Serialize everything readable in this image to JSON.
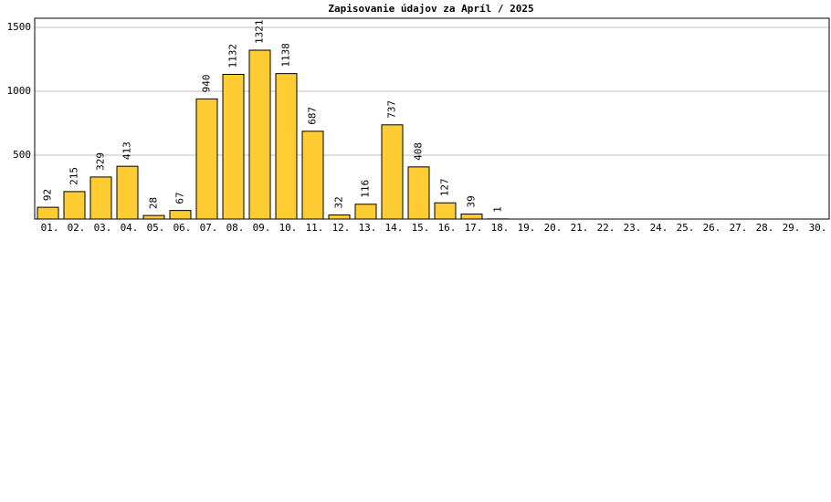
{
  "chart_data": {
    "type": "bar",
    "title": "Zapisovanie údajov za Apríl / 2025",
    "categories": [
      "01.",
      "02.",
      "03.",
      "04.",
      "05.",
      "06.",
      "07.",
      "08.",
      "09.",
      "10.",
      "11.",
      "12.",
      "13.",
      "14.",
      "15.",
      "16.",
      "17.",
      "18.",
      "19.",
      "20.",
      "21.",
      "22.",
      "23.",
      "24.",
      "25.",
      "26.",
      "27.",
      "28.",
      "29.",
      "30."
    ],
    "values": [
      92,
      215,
      329,
      413,
      28,
      67,
      940,
      1132,
      1321,
      1138,
      687,
      32,
      116,
      737,
      408,
      127,
      39,
      1,
      null,
      null,
      null,
      null,
      null,
      null,
      null,
      null,
      null,
      null,
      null,
      null
    ],
    "color": "#ffcc33",
    "ylim": [
      0,
      1571
    ],
    "yticks": [
      500,
      1000,
      1500
    ],
    "grid": true
  }
}
